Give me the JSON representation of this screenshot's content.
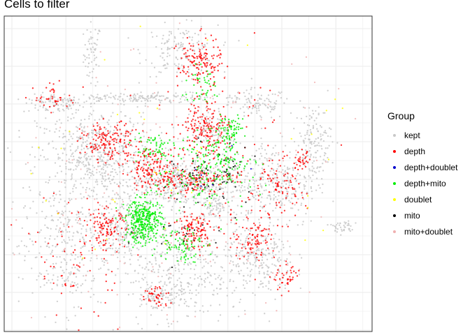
{
  "chart_data": {
    "type": "scatter",
    "title": "Cells to filter",
    "xlabel": "",
    "ylabel": "",
    "grid": true,
    "axis_ticks_shown": false,
    "legend": {
      "title": "Group",
      "placement": "right",
      "entries": [
        {
          "name": "kept",
          "color": "#c8c8c8"
        },
        {
          "name": "depth",
          "color": "#ff0000"
        },
        {
          "name": "depth+doublet",
          "color": "#0000cc"
        },
        {
          "name": "depth+mito",
          "color": "#00ee00"
        },
        {
          "name": "doublet",
          "color": "#ffff00"
        },
        {
          "name": "mito",
          "color": "#000000"
        },
        {
          "name": "mito+doublet",
          "color": "#f0b0b0"
        }
      ]
    },
    "xlim": [
      0,
      100
    ],
    "ylim": [
      0,
      100
    ],
    "clusters": [
      {
        "group": "kept",
        "cx": 24,
        "cy": 88,
        "sx": 1.2,
        "sy": 5,
        "n": 60
      },
      {
        "group": "kept",
        "cx": 13,
        "cy": 72,
        "sx": 4,
        "sy": 1.5,
        "n": 80
      },
      {
        "group": "kept",
        "cx": 38,
        "cy": 74,
        "sx": 14,
        "sy": 0.8,
        "n": 200
      },
      {
        "group": "kept",
        "cx": 69,
        "cy": 72,
        "sx": 4,
        "sy": 2.5,
        "n": 90
      },
      {
        "group": "kept",
        "cx": 48,
        "cy": 89,
        "sx": 5,
        "sy": 4,
        "n": 150
      },
      {
        "group": "kept",
        "cx": 25,
        "cy": 55,
        "sx": 8,
        "sy": 8,
        "n": 600
      },
      {
        "group": "kept",
        "cx": 48,
        "cy": 47,
        "sx": 7,
        "sy": 4,
        "n": 400
      },
      {
        "group": "kept",
        "cx": 73,
        "cy": 47,
        "sx": 6,
        "sy": 7,
        "n": 300
      },
      {
        "group": "kept",
        "cx": 84,
        "cy": 60,
        "sx": 2.5,
        "sy": 6,
        "n": 150
      },
      {
        "group": "kept",
        "cx": 16,
        "cy": 26,
        "sx": 6,
        "sy": 10,
        "n": 300
      },
      {
        "group": "kept",
        "cx": 47,
        "cy": 20,
        "sx": 7,
        "sy": 9,
        "n": 350
      },
      {
        "group": "kept",
        "cx": 69,
        "cy": 22,
        "sx": 5,
        "sy": 6,
        "n": 250
      },
      {
        "group": "kept",
        "cx": 32,
        "cy": 32,
        "sx": 3,
        "sy": 4,
        "n": 160
      },
      {
        "group": "kept",
        "cx": 57,
        "cy": 40,
        "sx": 2,
        "sy": 3,
        "n": 80
      },
      {
        "group": "kept",
        "cx": 92,
        "cy": 33,
        "sx": 2,
        "sy": 1,
        "n": 40
      },
      {
        "group": "kept",
        "cx": 42,
        "cy": 11,
        "sx": 3,
        "sy": 2,
        "n": 70
      },
      {
        "group": "kept",
        "cx": 57,
        "cy": 64,
        "sx": 3,
        "sy": 3,
        "n": 90
      },
      {
        "group": "depth",
        "cx": 53,
        "cy": 85,
        "sx": 3,
        "sy": 4,
        "n": 140
      },
      {
        "group": "depth",
        "cx": 29,
        "cy": 60,
        "sx": 4,
        "sy": 3,
        "n": 160
      },
      {
        "group": "depth",
        "cx": 40,
        "cy": 52,
        "sx": 3,
        "sy": 3,
        "n": 120
      },
      {
        "group": "depth",
        "cx": 55,
        "cy": 65,
        "sx": 3,
        "sy": 4,
        "n": 140
      },
      {
        "group": "depth",
        "cx": 50,
        "cy": 48,
        "sx": 6,
        "sy": 2,
        "n": 140
      },
      {
        "group": "depth",
        "cx": 74,
        "cy": 45,
        "sx": 4,
        "sy": 5,
        "n": 90
      },
      {
        "group": "depth",
        "cx": 28,
        "cy": 33,
        "sx": 2.5,
        "sy": 3,
        "n": 100
      },
      {
        "group": "depth",
        "cx": 52,
        "cy": 32,
        "sx": 3,
        "sy": 3,
        "n": 120
      },
      {
        "group": "depth",
        "cx": 68,
        "cy": 30,
        "sx": 3,
        "sy": 4,
        "n": 90
      },
      {
        "group": "depth",
        "cx": 14,
        "cy": 74,
        "sx": 3,
        "sy": 2,
        "n": 40
      },
      {
        "group": "depth",
        "cx": 41,
        "cy": 11,
        "sx": 2,
        "sy": 2,
        "n": 40
      },
      {
        "group": "depth",
        "cx": 77,
        "cy": 17,
        "sx": 2,
        "sy": 2,
        "n": 40
      },
      {
        "group": "depth",
        "cx": 20,
        "cy": 25,
        "sx": 6,
        "sy": 10,
        "n": 80
      },
      {
        "group": "depth",
        "cx": 81,
        "cy": 54,
        "sx": 1,
        "sy": 1.5,
        "n": 30
      },
      {
        "group": "depth",
        "cx": 56,
        "cy": 55,
        "sx": 10,
        "sy": 12,
        "n": 120
      },
      {
        "group": "depth+mito",
        "cx": 38,
        "cy": 35,
        "sx": 2.5,
        "sy": 3.5,
        "n": 350
      },
      {
        "group": "depth+mito",
        "cx": 58,
        "cy": 54,
        "sx": 5,
        "sy": 4,
        "n": 150
      },
      {
        "group": "depth+mito",
        "cx": 61,
        "cy": 64,
        "sx": 2,
        "sy": 2,
        "n": 70
      },
      {
        "group": "depth+mito",
        "cx": 48,
        "cy": 28,
        "sx": 3,
        "sy": 3,
        "n": 80
      },
      {
        "group": "depth+mito",
        "cx": 40,
        "cy": 58,
        "sx": 3,
        "sy": 3,
        "n": 60
      },
      {
        "group": "depth+mito",
        "cx": 54,
        "cy": 78,
        "sx": 3,
        "sy": 3,
        "n": 40
      },
      {
        "group": "depth+mito",
        "cx": 54,
        "cy": 45,
        "sx": 8,
        "sy": 5,
        "n": 70
      },
      {
        "group": "doublet",
        "cx": 50,
        "cy": 50,
        "sx": 20,
        "sy": 18,
        "n": 45
      },
      {
        "group": "mito",
        "cx": 54,
        "cy": 50,
        "sx": 6,
        "sy": 5,
        "n": 50
      },
      {
        "group": "mito",
        "cx": 60,
        "cy": 50,
        "sx": 2,
        "sy": 2,
        "n": 18
      },
      {
        "group": "mito",
        "cx": 48,
        "cy": 30,
        "sx": 6,
        "sy": 4,
        "n": 20
      },
      {
        "group": "depth+doublet",
        "cx": 56,
        "cy": 48,
        "sx": 4,
        "sy": 4,
        "n": 6
      },
      {
        "group": "mito+doublet",
        "cx": 45,
        "cy": 45,
        "sx": 25,
        "sy": 25,
        "n": 200
      }
    ]
  }
}
